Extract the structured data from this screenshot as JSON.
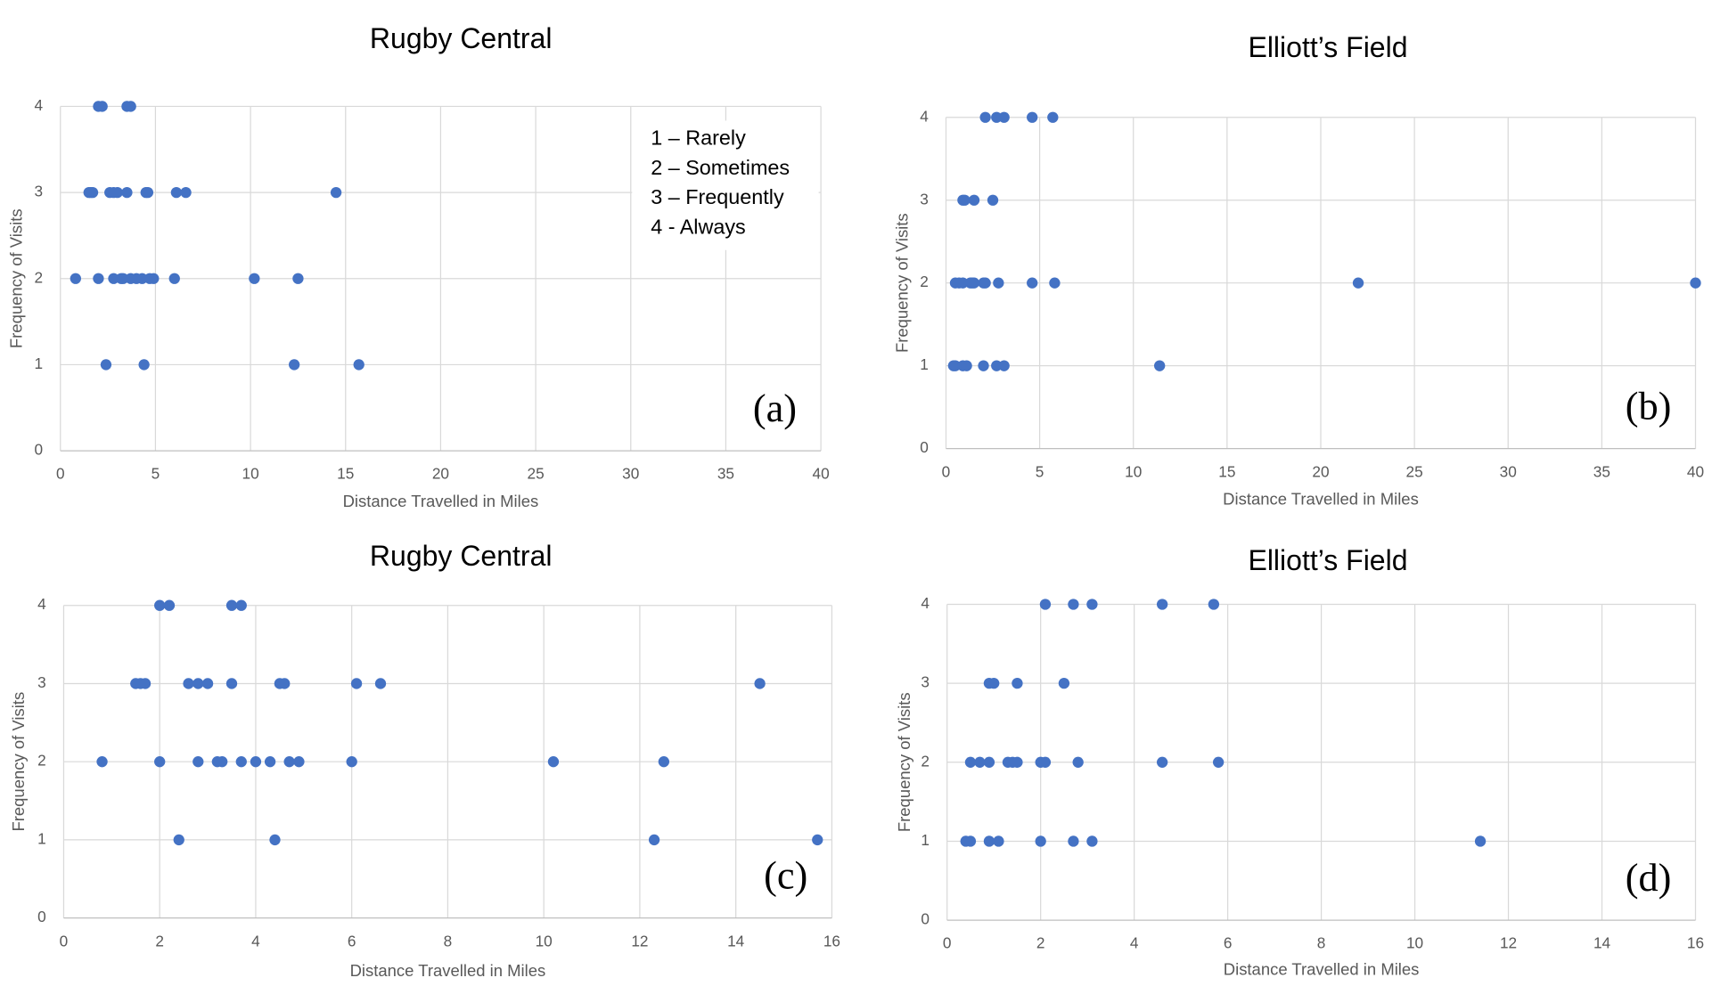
{
  "chart_data": [
    {
      "type": "scatter",
      "title": "Rugby Central",
      "x_label": "Distance Travelled in Miles",
      "y_label": "Frequency of Visits",
      "panel_label": "(a)",
      "annotations": [
        "1 – Rarely",
        "2 – Sometimes",
        "3 – Frequently",
        "4 - Always"
      ],
      "color": "#4472c4",
      "grid": true,
      "xlim": [
        0,
        40
      ],
      "xticks": [
        0,
        5,
        10,
        15,
        20,
        25,
        30,
        35,
        40
      ],
      "ylim": [
        0,
        4
      ],
      "yticks": [
        0,
        1,
        2,
        3,
        4
      ],
      "x": [
        2.0,
        2.2,
        3.5,
        3.7,
        1.5,
        1.6,
        1.7,
        2.6,
        2.8,
        3.0,
        3.5,
        4.5,
        4.6,
        6.1,
        6.6,
        14.5,
        0.8,
        2.0,
        2.8,
        3.2,
        3.3,
        3.7,
        4.0,
        4.3,
        4.7,
        4.9,
        6.0,
        10.2,
        12.5,
        2.4,
        4.4,
        12.3,
        15.7
      ],
      "values": [
        4,
        4,
        4,
        4,
        3,
        3,
        3,
        3,
        3,
        3,
        3,
        3,
        3,
        3,
        3,
        3,
        2,
        2,
        2,
        2,
        2,
        2,
        2,
        2,
        2,
        2,
        2,
        2,
        2,
        1,
        1,
        1,
        1
      ]
    },
    {
      "type": "scatter",
      "title": "Elliott’s Field",
      "x_label": "Distance Travelled in Miles",
      "y_label": "Frequency of Visits",
      "panel_label": "(b)",
      "color": "#4472c4",
      "grid": true,
      "xlim": [
        0,
        40
      ],
      "xticks": [
        0,
        5,
        10,
        15,
        20,
        25,
        30,
        35,
        40
      ],
      "ylim": [
        0,
        4
      ],
      "yticks": [
        0,
        1,
        2,
        3,
        4
      ],
      "x": [
        2.1,
        2.7,
        3.1,
        4.6,
        5.7,
        0.9,
        1.0,
        1.5,
        2.5,
        0.5,
        0.7,
        0.9,
        1.3,
        1.4,
        1.5,
        2.0,
        2.1,
        2.8,
        4.6,
        5.8,
        22,
        40,
        0.4,
        0.5,
        0.9,
        1.1,
        2.0,
        2.7,
        3.1,
        11.4
      ],
      "values": [
        4,
        4,
        4,
        4,
        4,
        3,
        3,
        3,
        3,
        2,
        2,
        2,
        2,
        2,
        2,
        2,
        2,
        2,
        2,
        2,
        2,
        2,
        1,
        1,
        1,
        1,
        1,
        1,
        1,
        1
      ]
    },
    {
      "type": "scatter",
      "title": "Rugby Central",
      "x_label": "Distance Travelled in Miles",
      "y_label": "Frequency of Visits",
      "panel_label": "(c)",
      "color": "#4472c4",
      "grid": true,
      "xlim": [
        0,
        16
      ],
      "xticks": [
        0,
        2,
        4,
        6,
        8,
        10,
        12,
        14,
        16
      ],
      "ylim": [
        0,
        4
      ],
      "yticks": [
        0,
        1,
        2,
        3,
        4
      ],
      "x": [
        2.0,
        2.2,
        3.5,
        3.7,
        1.5,
        1.6,
        1.7,
        2.6,
        2.8,
        3.0,
        3.5,
        4.5,
        4.6,
        6.1,
        6.6,
        14.5,
        0.8,
        2.0,
        2.8,
        3.2,
        3.3,
        3.7,
        4.0,
        4.3,
        4.7,
        4.9,
        6.0,
        10.2,
        12.5,
        2.4,
        4.4,
        12.3,
        15.7
      ],
      "values": [
        4,
        4,
        4,
        4,
        3,
        3,
        3,
        3,
        3,
        3,
        3,
        3,
        3,
        3,
        3,
        3,
        2,
        2,
        2,
        2,
        2,
        2,
        2,
        2,
        2,
        2,
        2,
        2,
        2,
        1,
        1,
        1,
        1
      ]
    },
    {
      "type": "scatter",
      "title": "Elliott’s Field",
      "x_label": "Distance Travelled in Miles",
      "y_label": "Frequency of Visits",
      "panel_label": "(d)",
      "color": "#4472c4",
      "grid": true,
      "xlim": [
        0,
        16
      ],
      "xticks": [
        0,
        2,
        4,
        6,
        8,
        10,
        12,
        14,
        16
      ],
      "ylim": [
        0,
        4
      ],
      "yticks": [
        0,
        1,
        2,
        3,
        4
      ],
      "x": [
        2.1,
        2.7,
        3.1,
        4.6,
        5.7,
        0.9,
        1.0,
        1.5,
        2.5,
        0.5,
        0.7,
        0.9,
        1.3,
        1.4,
        1.5,
        2.0,
        2.1,
        2.8,
        4.6,
        5.8,
        0.4,
        0.5,
        0.9,
        1.1,
        2.0,
        2.7,
        3.1,
        11.4
      ],
      "values": [
        4,
        4,
        4,
        4,
        4,
        3,
        3,
        3,
        3,
        2,
        2,
        2,
        2,
        2,
        2,
        2,
        2,
        2,
        2,
        2,
        1,
        1,
        1,
        1,
        1,
        1,
        1,
        1
      ]
    }
  ]
}
